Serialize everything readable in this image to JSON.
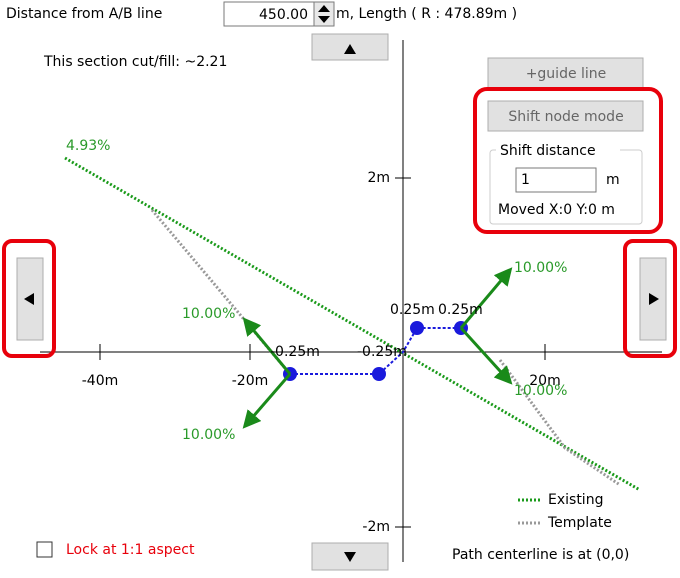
{
  "header": {
    "label": "Distance from A/B line",
    "distance": "450.00",
    "length": "m, Length (  R : 478.89m )"
  },
  "cut_fill": "This section cut/fill: ~2.21",
  "panel": {
    "guide_button": "+guide line",
    "shift_button": "Shift node mode",
    "group_title": "Shift distance",
    "shift_value": "1",
    "unit": "m",
    "moved": "Moved X:0 Y:0 m"
  },
  "plot": {
    "existing_grade": "4.93%",
    "y_labels": [
      "2m",
      "-2m"
    ],
    "x_labels": [
      "-40m",
      "-20m",
      "20m"
    ],
    "slope_labels": [
      "10.00%",
      "10.00%",
      "10.00%",
      "10.00%"
    ],
    "offset_labels": [
      "-0.25m",
      "-0.25m",
      "0.25m",
      "0.25m"
    ],
    "legend": [
      "Existing",
      "Template"
    ]
  },
  "footer": {
    "lock": "Lock at 1:1 aspect",
    "centerline": "Path centerline is at (0,0)"
  }
}
